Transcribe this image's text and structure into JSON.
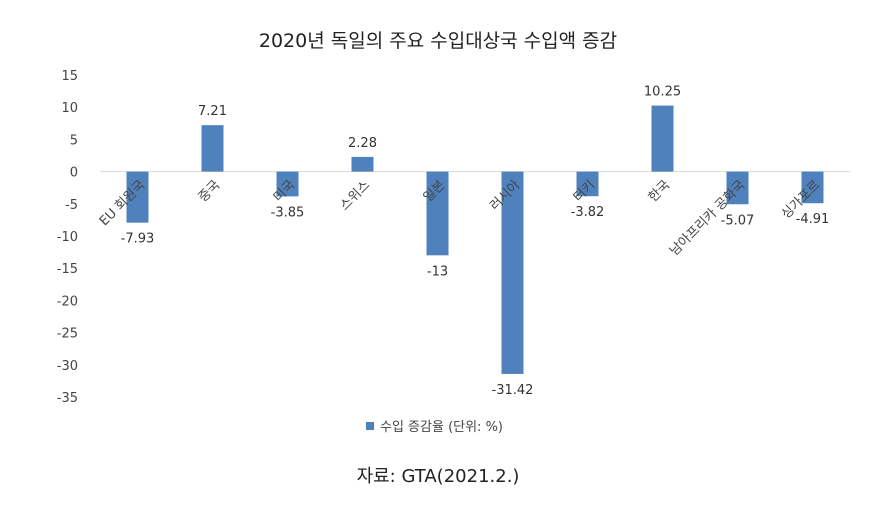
{
  "chart_data": {
    "type": "bar",
    "title": "2020년 독일의 주요 수입대상국 수입액 증감",
    "categories": [
      "EU 회원국",
      "중국",
      "미국",
      "스위스",
      "일본",
      "러시아",
      "터키",
      "한국",
      "남아프리카 공화국",
      "싱가포르"
    ],
    "series": [
      {
        "name": "수입 증감율 (단위: %)",
        "values": [
          -7.93,
          7.21,
          -3.85,
          2.28,
          -13,
          -31.42,
          -3.82,
          10.25,
          -5.07,
          -4.91
        ],
        "value_labels": [
          "-7.93",
          "7.21",
          "-3.85",
          "2.28",
          "-13",
          "-31.42",
          "-3.82",
          "10.25",
          "-5.07",
          "-4.91"
        ],
        "color": "#4f81bd"
      }
    ],
    "y_ticks": [
      "15",
      "10",
      "5",
      "0",
      "-5",
      "-10",
      "-15",
      "-20",
      "-25",
      "-30",
      "-35"
    ],
    "ylim": [
      -35,
      15
    ],
    "grid": false,
    "legend_position": "bottom"
  },
  "source_note": "자료: GTA(2021.2.)"
}
